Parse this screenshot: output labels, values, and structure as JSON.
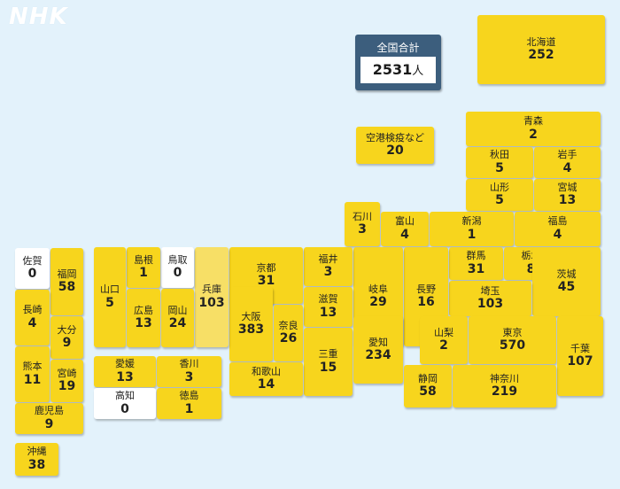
{
  "logo": "NHK",
  "total": {
    "label": "全国合計",
    "value": "2531",
    "unit": "人"
  },
  "airport": {
    "name": "空港検疫など",
    "value": "20"
  },
  "colors": {
    "background": "#e3f2fb",
    "yellow": "#f7d51d",
    "light_yellow": "#f7df66",
    "zero": "#ffffff",
    "total_box": "#3c5e7d"
  },
  "prefectures": {
    "hokkaido": {
      "name": "北海道",
      "value": "252"
    },
    "aomori": {
      "name": "青森",
      "value": "2"
    },
    "akita": {
      "name": "秋田",
      "value": "5"
    },
    "iwate": {
      "name": "岩手",
      "value": "4"
    },
    "yamagata": {
      "name": "山形",
      "value": "5"
    },
    "miyagi": {
      "name": "宮城",
      "value": "13"
    },
    "ishikawa": {
      "name": "石川",
      "value": "3"
    },
    "toyama": {
      "name": "富山",
      "value": "4"
    },
    "niigata": {
      "name": "新潟",
      "value": "1"
    },
    "fukushima": {
      "name": "福島",
      "value": "4"
    },
    "gunma": {
      "name": "群馬",
      "value": "31"
    },
    "tochigi": {
      "name": "栃木",
      "value": "8"
    },
    "ibaraki": {
      "name": "茨城",
      "value": "45"
    },
    "saitama": {
      "name": "埼玉",
      "value": "103"
    },
    "nagano": {
      "name": "長野",
      "value": "16"
    },
    "gifu": {
      "name": "岐阜",
      "value": "29"
    },
    "fukui": {
      "name": "福井",
      "value": "3"
    },
    "kyoto": {
      "name": "京都",
      "value": "31"
    },
    "shiga": {
      "name": "滋賀",
      "value": "13"
    },
    "osaka": {
      "name": "大阪",
      "value": "383"
    },
    "nara": {
      "name": "奈良",
      "value": "26"
    },
    "hyogo": {
      "name": "兵庫",
      "value": "103"
    },
    "mie": {
      "name": "三重",
      "value": "15"
    },
    "aichi": {
      "name": "愛知",
      "value": "234"
    },
    "yamanashi": {
      "name": "山梨",
      "value": "2"
    },
    "tokyo": {
      "name": "東京",
      "value": "570"
    },
    "chiba": {
      "name": "千葉",
      "value": "107"
    },
    "shizuoka": {
      "name": "静岡",
      "value": "58"
    },
    "kanagawa": {
      "name": "神奈川",
      "value": "219"
    },
    "wakayama": {
      "name": "和歌山",
      "value": "14"
    },
    "tottori": {
      "name": "鳥取",
      "value": "0"
    },
    "shimane": {
      "name": "島根",
      "value": "1"
    },
    "yamaguchi": {
      "name": "山口",
      "value": "5"
    },
    "hiroshima": {
      "name": "広島",
      "value": "13"
    },
    "okayama": {
      "name": "岡山",
      "value": "24"
    },
    "ehime": {
      "name": "愛媛",
      "value": "13"
    },
    "kagawa": {
      "name": "香川",
      "value": "3"
    },
    "kochi": {
      "name": "高知",
      "value": "0"
    },
    "tokushima": {
      "name": "徳島",
      "value": "1"
    },
    "saga": {
      "name": "佐賀",
      "value": "0"
    },
    "fukuoka": {
      "name": "福岡",
      "value": "58"
    },
    "nagasaki": {
      "name": "長崎",
      "value": "4"
    },
    "oita": {
      "name": "大分",
      "value": "9"
    },
    "kumamoto": {
      "name": "熊本",
      "value": "11"
    },
    "miyazaki": {
      "name": "宮崎",
      "value": "19"
    },
    "kagoshima": {
      "name": "鹿児島",
      "value": "9"
    },
    "okinawa": {
      "name": "沖縄",
      "value": "38"
    }
  }
}
